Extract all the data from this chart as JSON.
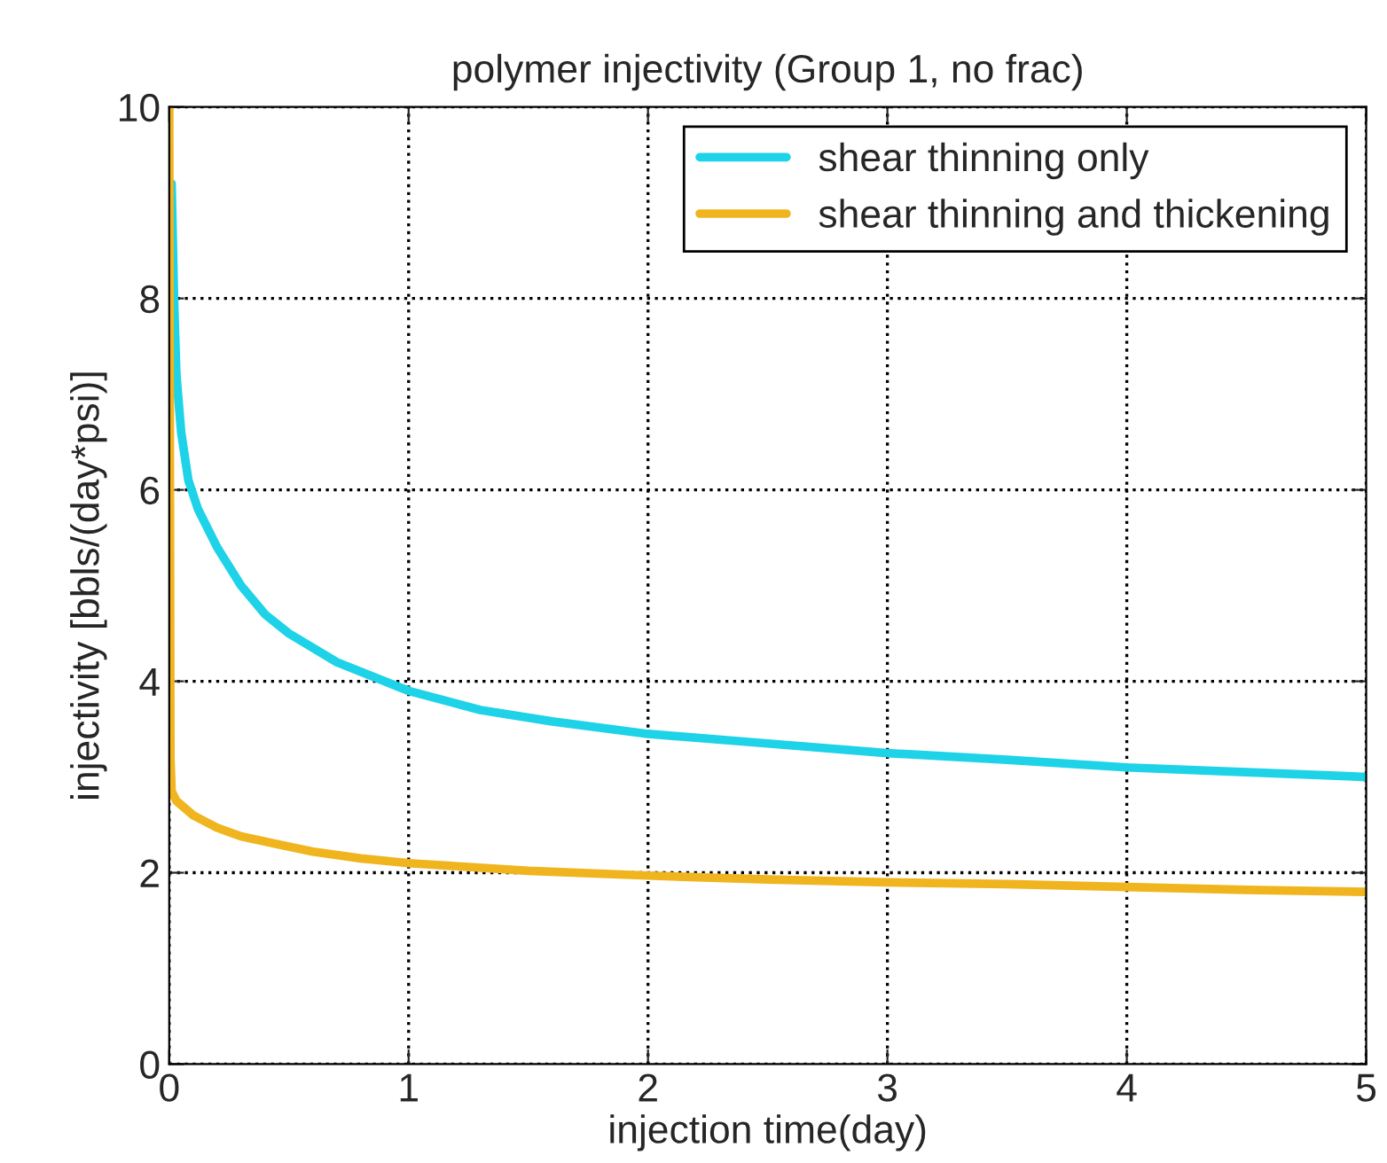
{
  "chart_data": {
    "type": "line",
    "title": "polymer injectivity (Group 1, no frac)",
    "xlabel": "injection time(day)",
    "ylabel": "injectivity [bbls/(day*psi)]",
    "xlim": [
      0,
      5
    ],
    "ylim": [
      0,
      10
    ],
    "xticks": [
      0,
      1,
      2,
      3,
      4,
      5
    ],
    "yticks": [
      0,
      2,
      4,
      6,
      8,
      10
    ],
    "grid": true,
    "legend": "top right",
    "line_style": "solid",
    "marker": "none",
    "series": [
      {
        "name": "shear thinning only",
        "color": "#1ed2e8",
        "x": [
          0.01,
          0.02,
          0.03,
          0.05,
          0.08,
          0.12,
          0.2,
          0.3,
          0.4,
          0.5,
          0.7,
          1.0,
          1.3,
          1.6,
          2.0,
          2.5,
          3.0,
          3.5,
          4.0,
          4.5,
          5.0
        ],
        "values": [
          9.2,
          8.0,
          7.2,
          6.6,
          6.1,
          5.8,
          5.4,
          5.0,
          4.7,
          4.5,
          4.2,
          3.9,
          3.7,
          3.58,
          3.45,
          3.35,
          3.25,
          3.18,
          3.1,
          3.05,
          3.0
        ]
      },
      {
        "name": "shear thinning and thickening",
        "color": "#f0b41e",
        "x": [
          0.0,
          0.005,
          0.01,
          0.03,
          0.1,
          0.2,
          0.3,
          0.45,
          0.6,
          0.8,
          1.0,
          1.5,
          2.0,
          2.5,
          3.0,
          3.5,
          4.0,
          4.5,
          5.0
        ],
        "values": [
          10.0,
          3.2,
          2.85,
          2.75,
          2.6,
          2.47,
          2.38,
          2.3,
          2.22,
          2.15,
          2.1,
          2.02,
          1.97,
          1.93,
          1.9,
          1.88,
          1.85,
          1.82,
          1.8
        ]
      }
    ]
  }
}
